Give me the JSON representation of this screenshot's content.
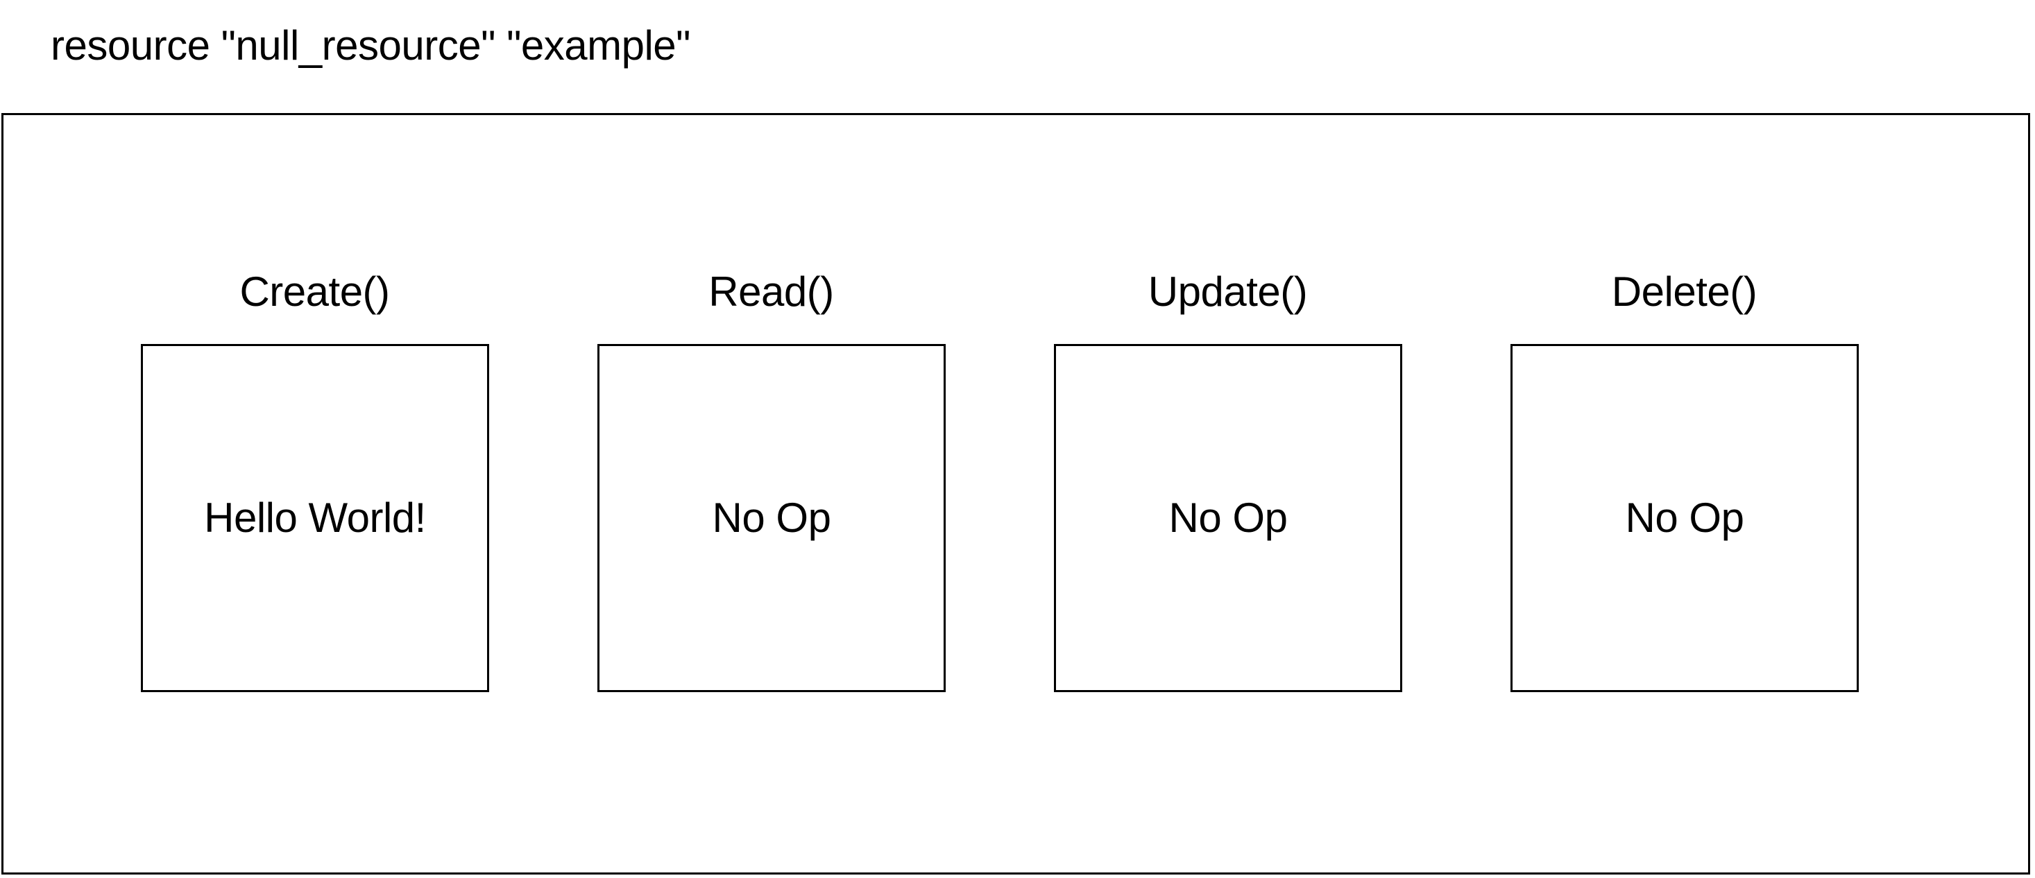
{
  "title": "resource \"null_resource\" \"example\"",
  "operations": [
    {
      "label": "Create()",
      "content": "Hello World!"
    },
    {
      "label": "Read()",
      "content": "No Op"
    },
    {
      "label": "Update()",
      "content": "No Op"
    },
    {
      "label": "Delete()",
      "content": "No Op"
    }
  ]
}
